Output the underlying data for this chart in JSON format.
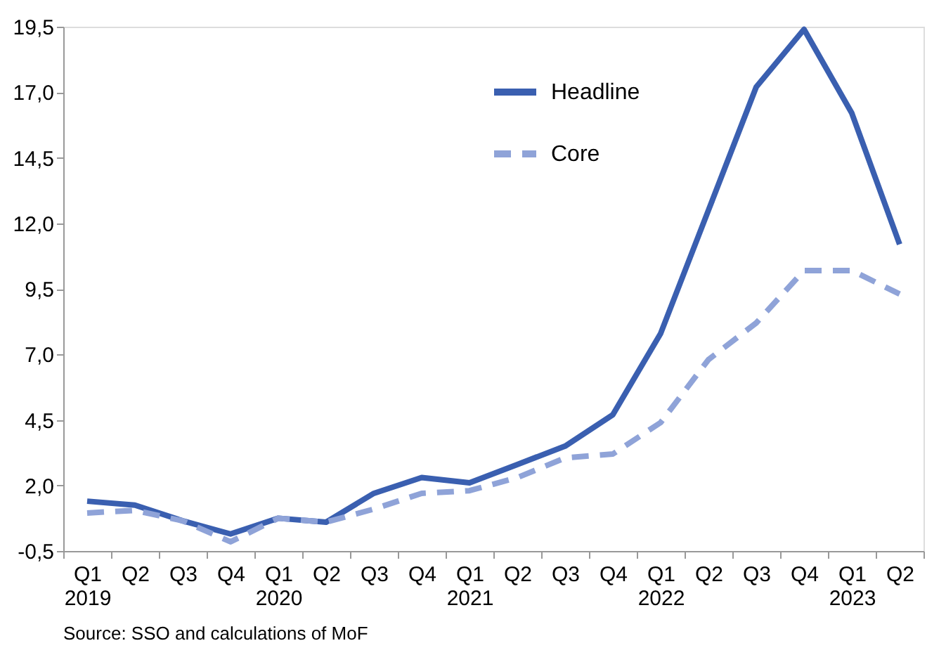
{
  "chart_data": {
    "type": "line",
    "categories": [
      "Q1 2019",
      "Q2",
      "Q3",
      "Q4",
      "Q1 2020",
      "Q2",
      "Q3",
      "Q4",
      "Q1 2021",
      "Q2",
      "Q3",
      "Q4",
      "Q1 2022",
      "Q2",
      "Q3",
      "Q4",
      "Q1 2023",
      "Q2"
    ],
    "series": [
      {
        "name": "Headline",
        "color": "#3a5fb0",
        "line_style": "solid",
        "values": [
          1.4,
          1.25,
          0.65,
          0.15,
          0.75,
          0.6,
          1.7,
          2.3,
          2.1,
          2.8,
          3.5,
          4.7,
          7.8,
          12.5,
          17.2,
          19.4,
          16.2,
          11.2
        ]
      },
      {
        "name": "Core",
        "color": "#8fa3d8",
        "line_style": "dashed",
        "values": [
          0.95,
          1.05,
          0.65,
          -0.15,
          0.75,
          0.6,
          1.1,
          1.7,
          1.8,
          2.3,
          3.05,
          3.2,
          4.4,
          6.8,
          8.2,
          10.2,
          10.2,
          9.3
        ]
      }
    ],
    "ylim": [
      -0.5,
      19.5
    ],
    "yticks": [
      {
        "value": -0.5,
        "label": "-0,5"
      },
      {
        "value": 2.0,
        "label": "2,0"
      },
      {
        "value": 4.5,
        "label": "4,5"
      },
      {
        "value": 7.0,
        "label": "7,0"
      },
      {
        "value": 9.5,
        "label": "9,5"
      },
      {
        "value": 12.0,
        "label": "12,0"
      },
      {
        "value": 14.5,
        "label": "14,5"
      },
      {
        "value": 17.0,
        "label": "17,0"
      },
      {
        "value": 19.5,
        "label": "19,5"
      }
    ],
    "grid": false,
    "legend": "top right",
    "annotations": [
      "Source: SSO and calculations of MoF"
    ]
  }
}
